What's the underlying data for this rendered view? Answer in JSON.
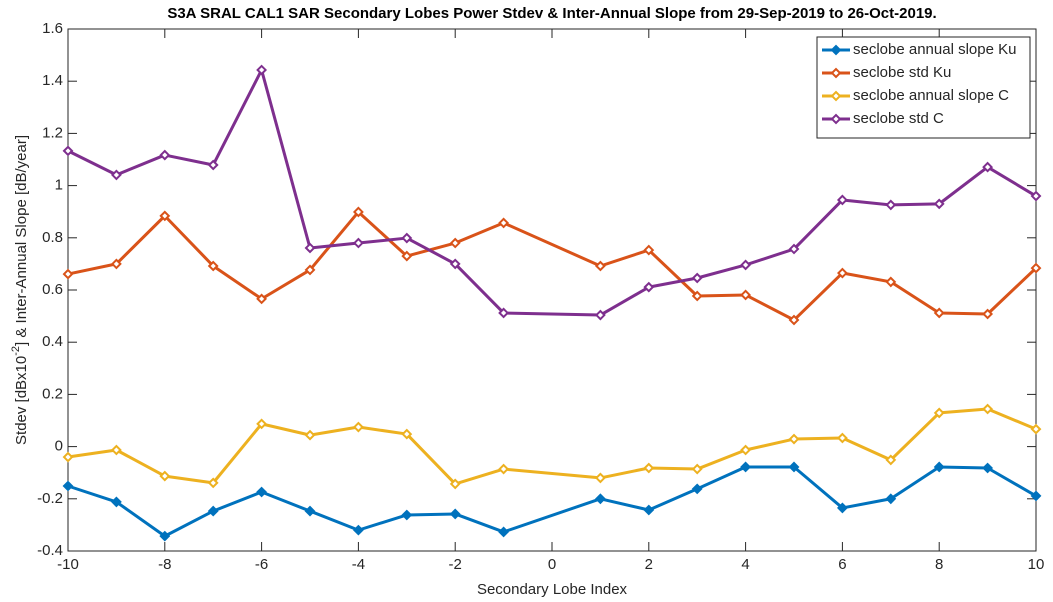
{
  "chart_data": {
    "type": "line",
    "title": "S3A SRAL CAL1 SAR Secondary Lobes Power Stdev & Inter-Annual Slope from 29-Sep-2019 to 26-Oct-2019.",
    "xlabel": "Secondary Lobe Index",
    "ylabel": [
      "Stdev [dBx10",
      "-2",
      "] & Inter-Annual Slope [dB/year]"
    ],
    "x": [
      -10,
      -9,
      -8,
      -7,
      -6,
      -5,
      -4,
      -3,
      -2,
      -1,
      1,
      2,
      3,
      4,
      5,
      6,
      7,
      8,
      9,
      10
    ],
    "series": [
      {
        "name": "seclobe annual slope Ku",
        "color": "#0072bd",
        "values": [
          -0.151,
          -0.212,
          -0.343,
          -0.247,
          -0.174,
          -0.247,
          -0.32,
          -0.262,
          -0.258,
          -0.327,
          -0.2,
          -0.243,
          -0.162,
          -0.078,
          -0.078,
          -0.235,
          -0.2,
          -0.078,
          -0.082,
          -0.189
        ]
      },
      {
        "name": "seclobe std Ku",
        "color": "#d95319",
        "values": [
          0.661,
          0.7,
          0.884,
          0.692,
          0.566,
          0.677,
          0.899,
          0.73,
          0.78,
          0.857,
          0.692,
          0.753,
          0.577,
          0.581,
          0.485,
          0.665,
          0.631,
          0.512,
          0.508,
          0.684
        ]
      },
      {
        "name": "seclobe annual slope C",
        "color": "#edb120",
        "values": [
          -0.04,
          -0.013,
          -0.113,
          -0.139,
          0.087,
          0.044,
          0.075,
          0.048,
          -0.143,
          -0.086,
          -0.12,
          -0.082,
          -0.086,
          -0.013,
          0.029,
          0.033,
          -0.051,
          0.129,
          0.144,
          0.067
        ]
      },
      {
        "name": "seclobe std C",
        "color": "#7e2f8e",
        "values": [
          1.133,
          1.041,
          1.117,
          1.079,
          1.443,
          0.761,
          0.78,
          0.799,
          0.7,
          0.512,
          0.504,
          0.611,
          0.646,
          0.696,
          0.757,
          0.945,
          0.926,
          0.93,
          1.071,
          0.96
        ]
      }
    ],
    "xlim": [
      -10,
      10
    ],
    "xticks": [
      -10,
      -8,
      -6,
      -4,
      -2,
      0,
      2,
      4,
      6,
      8,
      10
    ],
    "ylim": [
      -0.4,
      1.6
    ],
    "yticks": [
      -0.4,
      -0.2,
      0,
      0.2,
      0.4,
      0.6,
      0.8,
      1,
      1.2,
      1.4,
      1.6
    ],
    "grid": false,
    "legend": "top-right"
  }
}
